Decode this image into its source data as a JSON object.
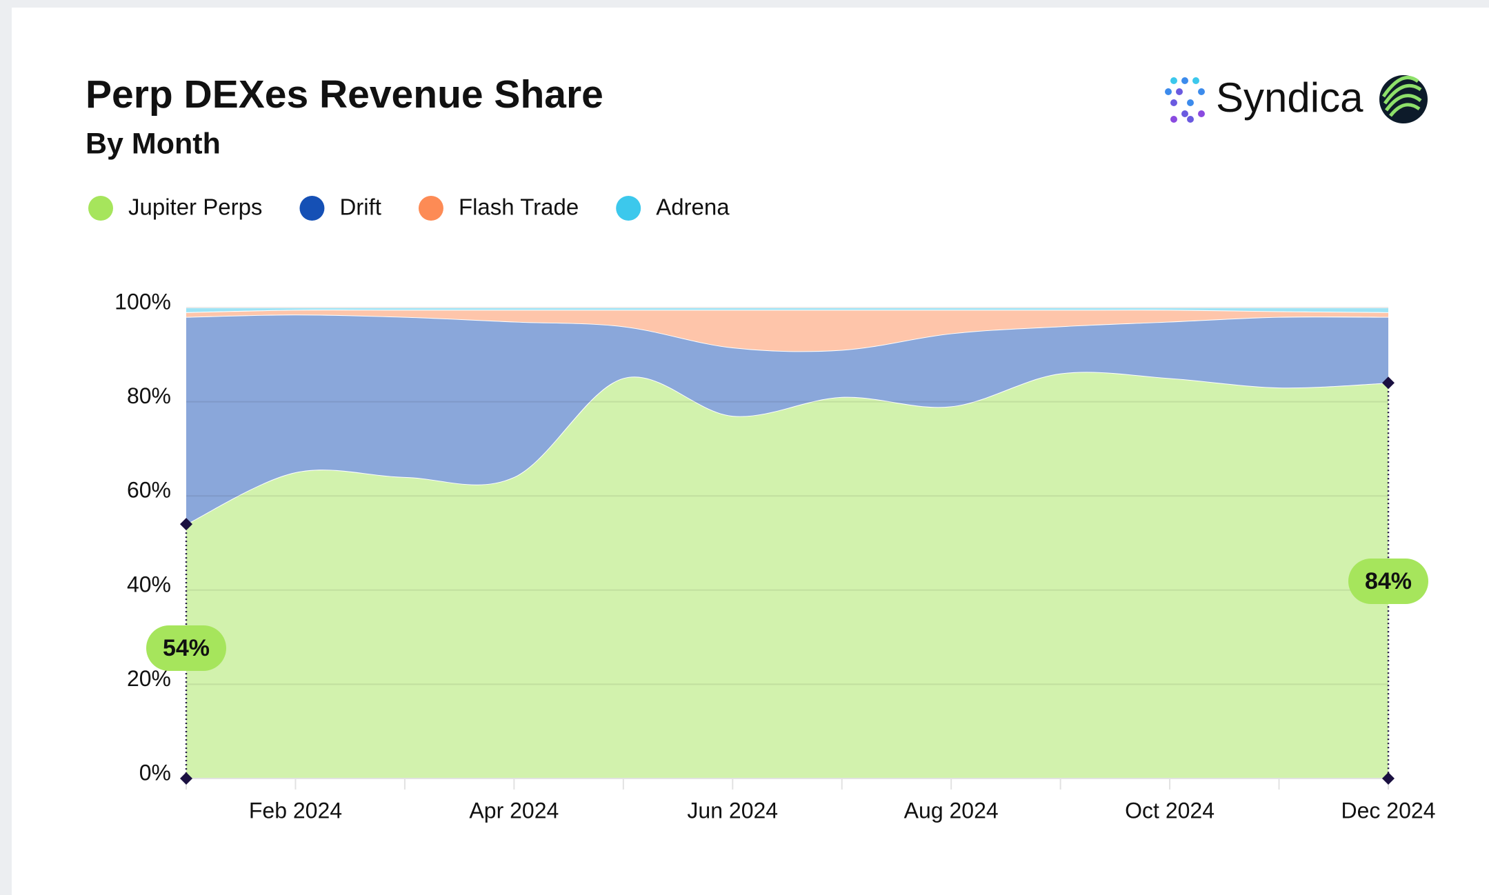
{
  "chart_data": {
    "type": "stacked_area",
    "title": "Perp DEXes Revenue Share",
    "subtitle": "By Month",
    "brand": "Syndica",
    "categories": [
      null,
      "Feb 2024",
      null,
      "Apr 2024",
      null,
      "Jun 2024",
      null,
      "Aug 2024",
      null,
      "Oct 2024",
      null,
      "Dec 2024"
    ],
    "series": [
      {
        "name": "Jupiter Perps",
        "color": "#a6e55c",
        "values": [
          54,
          65,
          64,
          64,
          85,
          77,
          81,
          79,
          86,
          85,
          83,
          84
        ],
        "value_labels": [
          "54%",
          null,
          null,
          null,
          null,
          null,
          null,
          null,
          null,
          null,
          null,
          "84%"
        ]
      },
      {
        "name": "Drift",
        "color": "#1550b5",
        "values": [
          44,
          33.5,
          34,
          33,
          11,
          14.5,
          10,
          15.5,
          10,
          12,
          15,
          14
        ]
      },
      {
        "name": "Flash Trade",
        "color": "#fd8b55",
        "values": [
          1,
          1,
          1.5,
          2.5,
          3.5,
          8,
          8.5,
          5,
          3.5,
          2.5,
          1.2,
          1
        ]
      },
      {
        "name": "Adrena",
        "color": "#3cc8ec",
        "values": [
          1,
          0.5,
          0.5,
          0.5,
          0.5,
          0.5,
          0.5,
          0.5,
          0.5,
          0.5,
          0.8,
          1
        ]
      }
    ],
    "ylim": [
      0,
      100
    ],
    "yticks": [
      {
        "value": 0,
        "label": "0%"
      },
      {
        "value": 20,
        "label": "20%"
      },
      {
        "value": 40,
        "label": "40%"
      },
      {
        "value": 60,
        "label": "60%"
      },
      {
        "value": 80,
        "label": "80%"
      },
      {
        "value": 100,
        "label": "100%"
      }
    ],
    "grid": true,
    "legend": "top-left"
  }
}
